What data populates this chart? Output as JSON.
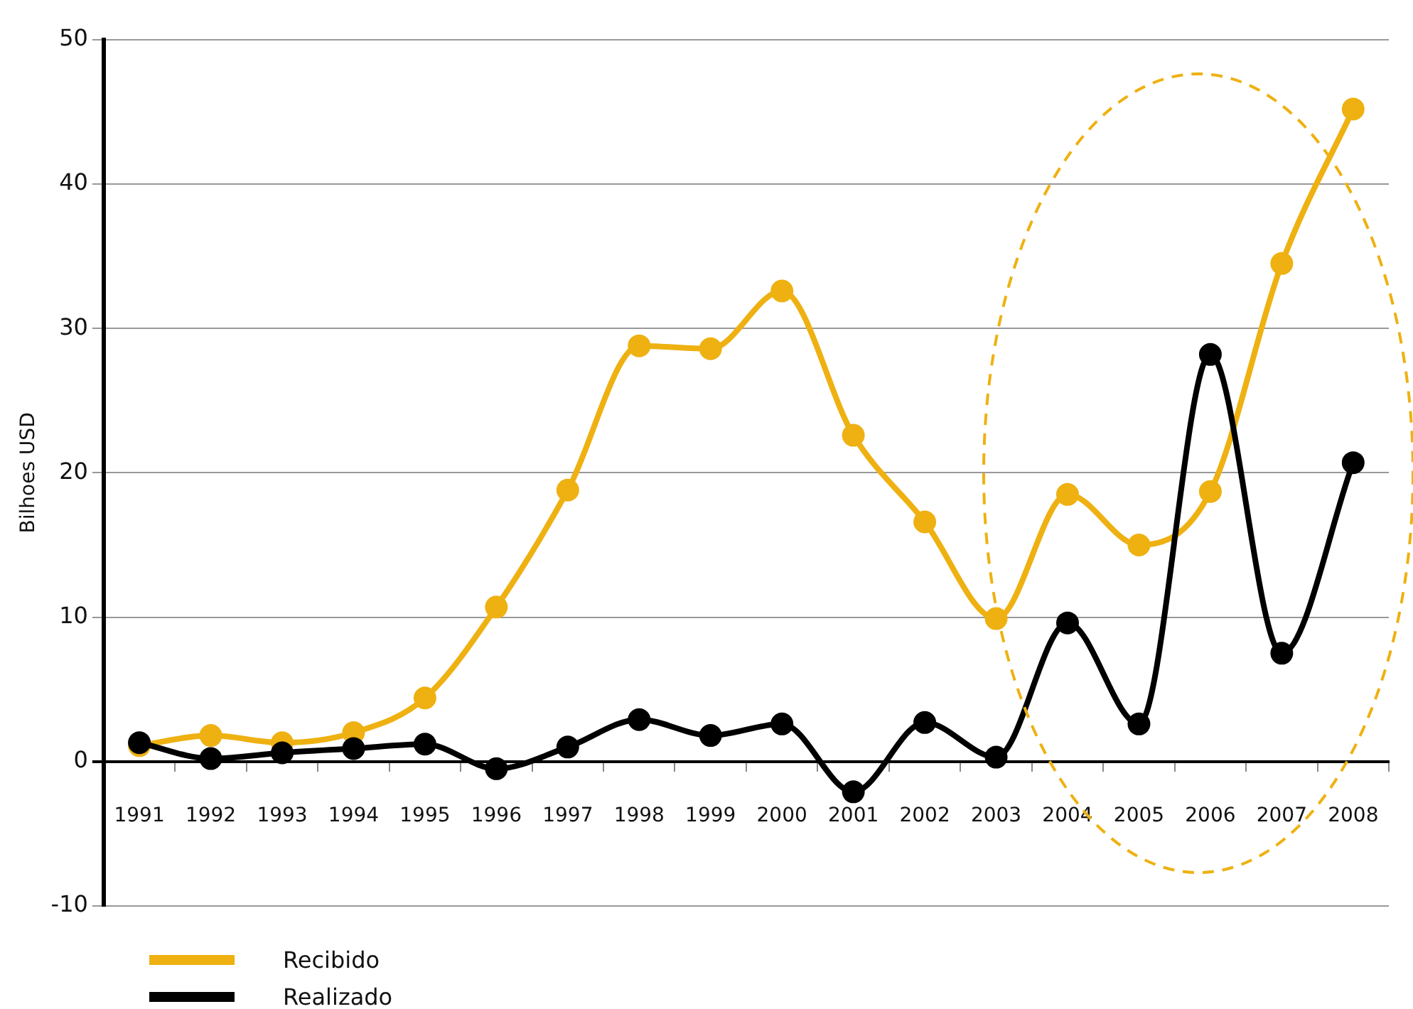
{
  "chart_data": {
    "type": "line",
    "ylabel": "Bilhoes USD",
    "categories": [
      "1991",
      "1992",
      "1993",
      "1994",
      "1995",
      "1996",
      "1997",
      "1998",
      "1999",
      "2000",
      "2001",
      "2002",
      "2003",
      "2004",
      "2005",
      "2006",
      "2007",
      "2008"
    ],
    "series": [
      {
        "name": "Recibido",
        "color": "#eeb111",
        "values": [
          1.1,
          1.8,
          1.3,
          2.0,
          4.4,
          10.7,
          18.8,
          28.8,
          28.6,
          32.6,
          22.6,
          16.6,
          9.9,
          18.5,
          15.0,
          18.7,
          34.5,
          45.2
        ]
      },
      {
        "name": "Realizado",
        "color": "#000000",
        "values": [
          1.3,
          0.2,
          0.6,
          0.9,
          1.2,
          -0.5,
          1.0,
          2.9,
          1.8,
          2.6,
          -2.1,
          2.7,
          0.3,
          9.6,
          2.6,
          28.2,
          7.5,
          20.7
        ]
      }
    ],
    "ylim": [
      -10,
      50
    ],
    "yticks": [
      -10,
      0,
      10,
      20,
      30,
      40,
      50
    ],
    "grid": "y",
    "legend": "bottom left",
    "marker": "circle",
    "line_style": "solid"
  }
}
